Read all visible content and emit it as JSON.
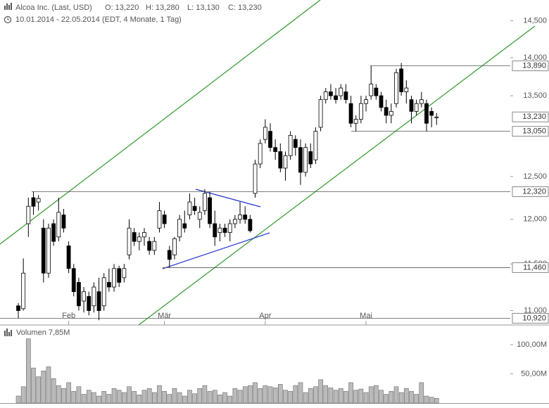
{
  "header": {
    "title": "Alcoa Inc. (Last, USD)",
    "open": "O: 13,220",
    "high": "H: 13,280",
    "low": "L: 13,130",
    "close": "C: 13,230",
    "range": "10.01.2014 - 22.05.2014 (EDT, 4 Monate, 1 Tag)"
  },
  "chart_data": [
    {
      "type": "candlestick",
      "log": true,
      "up_color": "#ffffff",
      "down_color": "#000000",
      "categories": [
        null,
        null,
        null,
        null,
        null,
        null,
        null,
        null,
        null,
        null,
        "Feb",
        null,
        null,
        null,
        null,
        null,
        null,
        null,
        null,
        null,
        null,
        null,
        null,
        null,
        null,
        null,
        null,
        null,
        null,
        "Mär",
        null,
        null,
        null,
        null,
        null,
        null,
        null,
        null,
        null,
        null,
        null,
        null,
        null,
        null,
        null,
        null,
        null,
        null,
        null,
        "Apr",
        null,
        null,
        null,
        null,
        null,
        null,
        null,
        null,
        null,
        null,
        null,
        null,
        null,
        null,
        null,
        null,
        null,
        null,
        null,
        "Mai",
        null,
        null,
        null,
        null,
        null,
        null,
        null,
        null,
        null,
        null,
        null,
        null,
        null,
        null
      ],
      "open": [
        11.05,
        11.02,
        11.95,
        12.25,
        12.2,
        11.9,
        11.4,
        11.95,
        11.8,
        12.05,
        11.7,
        11.45,
        11.3,
        11.1,
        11.15,
        11.05,
        11.2,
        11.05,
        11.3,
        11.25,
        11.45,
        11.35,
        11.6,
        11.85,
        11.75,
        11.8,
        11.75,
        11.65,
        11.9,
        12.05,
        11.65,
        11.6,
        11.8,
        11.95,
        12.05,
        12.15,
        12.0,
        12.1,
        12.25,
        11.95,
        11.85,
        11.9,
        11.85,
        11.95,
        12.0,
        12.05,
        12.0,
        12.3,
        12.65,
        12.95,
        13.05,
        12.85,
        12.8,
        12.6,
        12.75,
        12.95,
        12.85,
        12.55,
        12.8,
        12.7,
        13.1,
        13.45,
        13.55,
        13.5,
        13.5,
        13.55,
        13.4,
        13.15,
        13.2,
        13.4,
        13.5,
        13.6,
        13.5,
        13.35,
        13.25,
        13.4,
        13.85,
        13.55,
        13.45,
        13.3,
        13.4,
        13.4,
        13.3,
        13.22
      ],
      "high": [
        11.08,
        11.56,
        12.25,
        12.32,
        12.28,
        12.0,
        11.95,
        12.0,
        12.25,
        12.12,
        11.75,
        11.5,
        11.35,
        11.25,
        11.2,
        11.3,
        11.35,
        11.4,
        11.45,
        11.5,
        11.48,
        11.5,
        12.0,
        11.9,
        11.85,
        11.9,
        11.8,
        11.8,
        12.2,
        12.1,
        11.7,
        11.8,
        12.05,
        12.1,
        12.3,
        12.25,
        12.15,
        12.35,
        12.32,
        12.1,
        11.95,
        11.95,
        12.0,
        12.05,
        12.2,
        12.15,
        12.05,
        12.7,
        12.95,
        13.2,
        13.15,
        12.95,
        12.9,
        12.8,
        13.05,
        13.0,
        12.95,
        12.9,
        12.9,
        13.1,
        13.5,
        13.6,
        13.65,
        13.6,
        13.65,
        13.65,
        13.5,
        13.25,
        13.5,
        13.5,
        13.89,
        13.65,
        13.55,
        13.45,
        13.4,
        13.85,
        13.93,
        13.7,
        13.5,
        13.45,
        13.55,
        13.45,
        13.35,
        13.28
      ],
      "low": [
        10.92,
        11.0,
        11.8,
        12.05,
        12.1,
        11.3,
        11.35,
        11.7,
        11.75,
        11.85,
        11.4,
        11.15,
        11.0,
        10.98,
        10.95,
        10.98,
        10.9,
        11.0,
        11.2,
        11.2,
        11.25,
        11.3,
        11.55,
        11.7,
        11.65,
        11.7,
        11.6,
        11.6,
        11.85,
        11.9,
        11.46,
        11.55,
        11.75,
        11.85,
        12.0,
        12.05,
        11.9,
        12.05,
        11.9,
        11.7,
        11.75,
        11.8,
        11.75,
        11.9,
        11.95,
        11.95,
        11.85,
        12.25,
        12.6,
        12.9,
        12.8,
        12.7,
        12.55,
        12.45,
        12.7,
        12.75,
        12.4,
        12.5,
        12.6,
        12.65,
        13.05,
        13.4,
        13.45,
        13.4,
        13.45,
        13.4,
        13.1,
        13.05,
        13.15,
        13.3,
        13.45,
        13.45,
        13.3,
        13.15,
        13.15,
        13.35,
        13.5,
        13.4,
        13.15,
        13.25,
        13.35,
        13.05,
        13.1,
        13.13
      ],
      "close": [
        11.0,
        11.4,
        12.15,
        12.15,
        12.24,
        11.4,
        11.9,
        11.75,
        12.08,
        11.9,
        11.45,
        11.2,
        11.05,
        11.2,
        11.0,
        11.25,
        11.0,
        11.35,
        11.25,
        11.45,
        11.3,
        11.45,
        11.9,
        11.75,
        11.8,
        11.85,
        11.65,
        11.75,
        12.1,
        11.95,
        11.55,
        11.78,
        12.0,
        11.9,
        12.2,
        12.1,
        12.08,
        12.3,
        11.95,
        11.8,
        11.9,
        11.85,
        11.95,
        12.0,
        12.05,
        12.0,
        11.87,
        12.65,
        12.9,
        13.1,
        12.85,
        12.8,
        12.6,
        12.75,
        13.0,
        12.85,
        12.55,
        12.85,
        12.65,
        13.05,
        13.45,
        13.55,
        13.5,
        13.45,
        13.6,
        13.45,
        13.15,
        13.2,
        13.4,
        13.45,
        13.65,
        13.5,
        13.35,
        13.25,
        13.3,
        13.8,
        13.55,
        13.6,
        13.3,
        13.4,
        13.45,
        13.15,
        13.25,
        13.23
      ],
      "ylim": [
        10.85,
        14.79
      ],
      "yticks": [
        {
          "value": 11,
          "label": "11,000"
        },
        {
          "value": 11.5,
          "label": "11,500"
        },
        {
          "value": 12,
          "label": "12,000"
        },
        {
          "value": 12.5,
          "label": "12,500"
        },
        {
          "value": 13.5,
          "label": "13,500"
        },
        {
          "value": 14,
          "label": "14,000"
        },
        {
          "value": 14.5,
          "label": "14,500"
        }
      ],
      "levels": [
        {
          "value": 13.89,
          "label": "13,890"
        },
        {
          "value": 13.23,
          "label": "13,230"
        },
        {
          "value": 13.05,
          "label": "13,050"
        },
        {
          "value": 12.32,
          "label": "12,320"
        },
        {
          "value": 11.46,
          "label": "11,460"
        },
        {
          "value": 10.92,
          "label": "10,920"
        }
      ]
    },
    {
      "type": "bar",
      "title": "Volumen 7,85M",
      "color": "#bbbbbb",
      "values": [
        12,
        28,
        110,
        60,
        45,
        55,
        62,
        42,
        30,
        25,
        35,
        20,
        28,
        15,
        22,
        18,
        12,
        20,
        15,
        25,
        22,
        18,
        28,
        20,
        14,
        22,
        25,
        18,
        30,
        20,
        15,
        25,
        18,
        12,
        22,
        16,
        25,
        30,
        20,
        22,
        14,
        18,
        12,
        25,
        22,
        28,
        30,
        35,
        25,
        30,
        28,
        26,
        32,
        22,
        20,
        30,
        35,
        18,
        25,
        28,
        40,
        30,
        26,
        22,
        25,
        20,
        35,
        22,
        24,
        18,
        28,
        30,
        22,
        15,
        20,
        28,
        18,
        25,
        20,
        15,
        35,
        12,
        10,
        8
      ],
      "ylim": [
        0,
        130
      ],
      "yticks": [
        {
          "value": 50,
          "label": "50,00M"
        },
        {
          "value": 100,
          "label": "100,00M"
        }
      ]
    }
  ]
}
